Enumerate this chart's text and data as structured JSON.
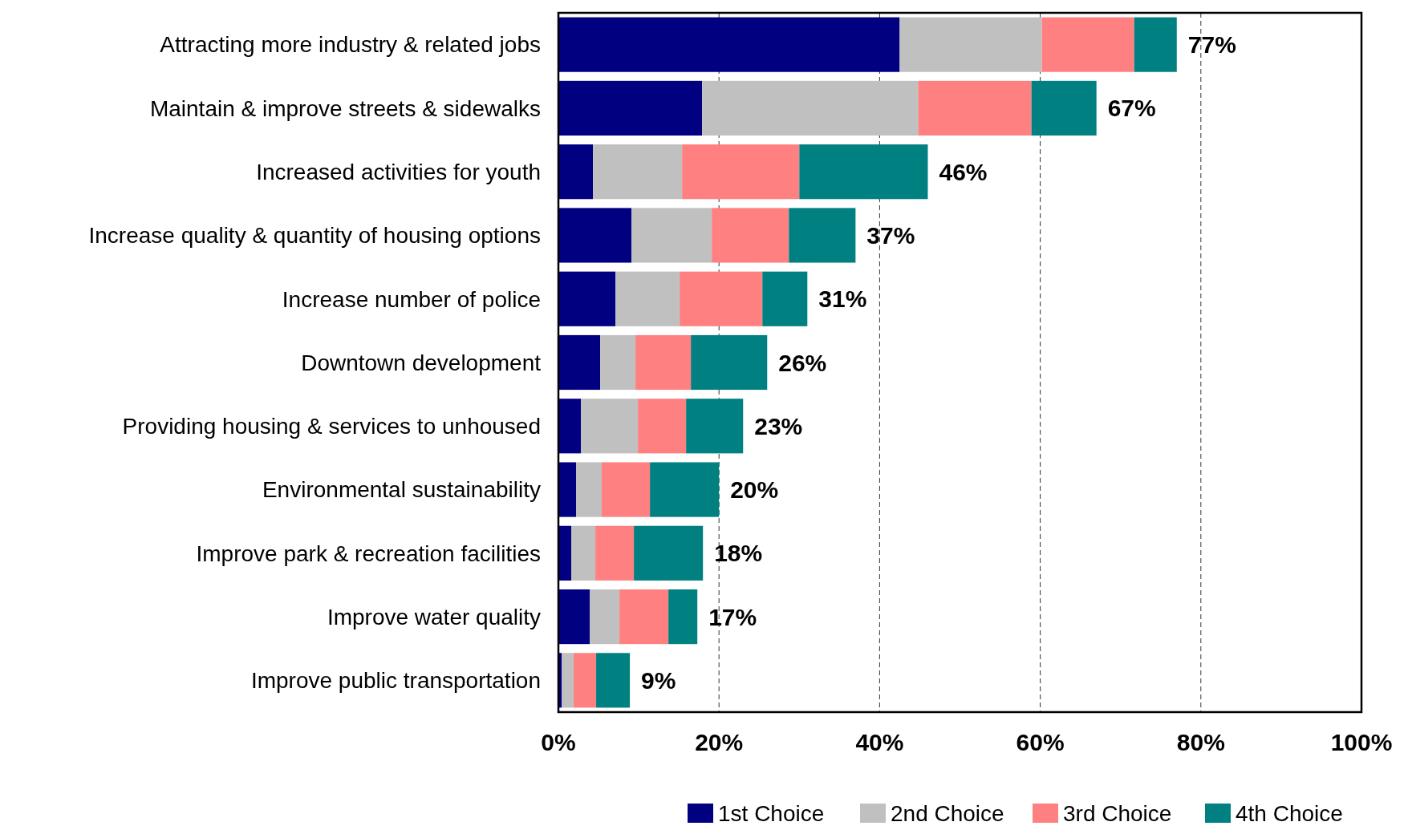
{
  "chart_data": {
    "type": "bar",
    "orientation": "horizontal",
    "stacked": true,
    "categories": [
      "Attracting more industry & related jobs",
      "Maintain & improve streets & sidewalks",
      "Increased activities for youth",
      "Increase quality & quantity of housing options",
      "Increase number of police",
      "Downtown development",
      "Providing housing & services to unhoused",
      "Environmental sustainability",
      "Improve park & recreation facilities",
      "Improve water quality",
      "Improve public transportation"
    ],
    "series": [
      {
        "name": "1st Choice",
        "color": "#000080",
        "values": [
          42.5,
          17.9,
          4.3,
          9.1,
          7.1,
          5.2,
          2.8,
          2.2,
          1.6,
          3.9,
          0.4
        ]
      },
      {
        "name": "2nd Choice",
        "color": "#c0c0c0",
        "values": [
          17.7,
          26.9,
          11.1,
          10.0,
          8.0,
          4.4,
          7.1,
          3.2,
          3.0,
          3.7,
          1.5
        ]
      },
      {
        "name": "3rd Choice",
        "color": "#ff8080",
        "values": [
          11.5,
          14.1,
          14.6,
          9.6,
          10.3,
          6.9,
          6.0,
          6.0,
          4.8,
          6.1,
          2.8
        ]
      },
      {
        "name": "4th Choice",
        "color": "#008080",
        "values": [
          5.3,
          8.1,
          16.0,
          8.3,
          5.6,
          9.5,
          7.1,
          8.6,
          8.6,
          3.6,
          4.2
        ]
      }
    ],
    "totals": [
      "77%",
      "67%",
      "46%",
      "37%",
      "31%",
      "26%",
      "23%",
      "20%",
      "18%",
      "17%",
      "9%"
    ],
    "xlim": [
      0,
      100
    ],
    "xticks": [
      {
        "value": 0,
        "label": "0%"
      },
      {
        "value": 20,
        "label": "20%"
      },
      {
        "value": 40,
        "label": "40%"
      },
      {
        "value": 60,
        "label": "60%"
      },
      {
        "value": 80,
        "label": "80%"
      },
      {
        "value": 100,
        "label": "100%"
      }
    ],
    "grid": "x",
    "legend": "bottom"
  }
}
